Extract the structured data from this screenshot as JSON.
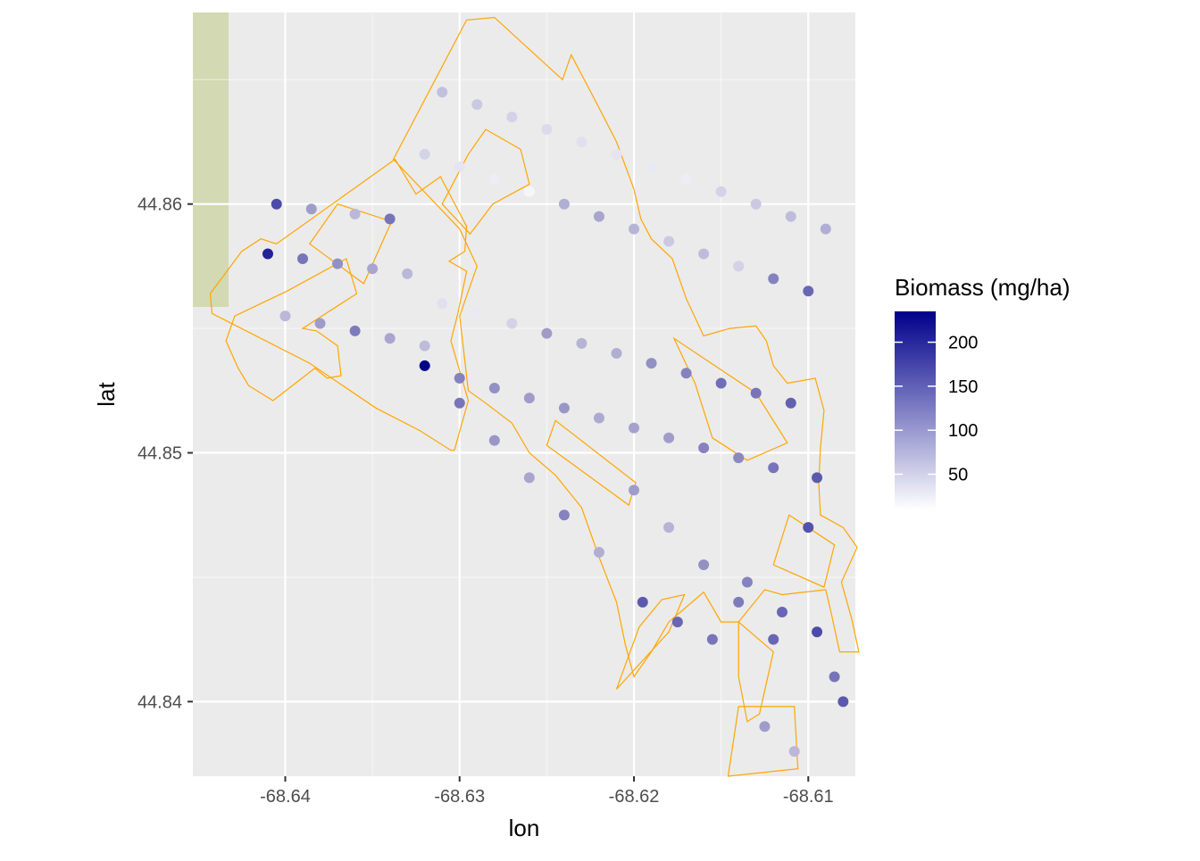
{
  "chart_data": {
    "type": "scatter",
    "xlabel": "lon",
    "ylabel": "lat",
    "xlim": [
      -68.6453,
      -68.6073
    ],
    "ylim": [
      44.837,
      44.8677
    ],
    "x_ticks": [
      -68.64,
      -68.63,
      -68.62,
      -68.61
    ],
    "x_tick_labels": [
      "-68.64",
      "-68.63",
      "-68.62",
      "-68.61"
    ],
    "y_ticks": [
      44.84,
      44.85,
      44.86
    ],
    "y_tick_labels": [
      "44.84",
      "44.85",
      "44.86"
    ],
    "grid": true,
    "legend": {
      "title": "Biomass (mg/ha)",
      "placement": "right",
      "range": [
        10,
        235
      ],
      "breaks": [
        50,
        100,
        150,
        200
      ],
      "labels": [
        "50",
        "100",
        "150",
        "200"
      ],
      "color_low": "#ffffff",
      "color_high": "#00008b"
    },
    "colors": {
      "panel_background": "#ebebeb",
      "grid_line": "#ffffff",
      "boundary": "#ffa500",
      "basemap_patch": "#d3d9b3"
    },
    "polygons": [
      [
        [
          -68.6405,
          44.8584
        ],
        [
          -68.6337,
          44.8618
        ],
        [
          -68.6325,
          44.8604
        ],
        [
          -68.6311,
          44.8611
        ],
        [
          -68.6296,
          44.8591
        ],
        [
          -68.6297,
          44.8581
        ],
        [
          -68.6306,
          44.8577
        ],
        [
          -68.6296,
          44.8573
        ],
        [
          -68.6301,
          44.8556
        ],
        [
          -68.6305,
          44.8545
        ],
        [
          -68.6295,
          44.8521
        ],
        [
          -68.6303,
          44.8501
        ],
        [
          -68.6305,
          44.8501
        ],
        [
          -68.6323,
          44.8509
        ],
        [
          -68.6348,
          44.8518
        ],
        [
          -68.6386,
          44.8536
        ],
        [
          -68.6442,
          44.8556
        ],
        [
          -68.6443,
          44.8564
        ],
        [
          -68.6425,
          44.8581
        ],
        [
          -68.6414,
          44.8586
        ]
      ],
      [
        [
          -68.6338,
          44.8618
        ],
        [
          -68.6296,
          44.8674
        ],
        [
          -68.628,
          44.8675
        ],
        [
          -68.6241,
          44.865
        ],
        [
          -68.6236,
          44.866
        ],
        [
          -68.6221,
          44.864
        ],
        [
          -68.621,
          44.8625
        ],
        [
          -68.62,
          44.8606
        ],
        [
          -68.6196,
          44.8594
        ],
        [
          -68.619,
          44.8586
        ],
        [
          -68.6178,
          44.8578
        ],
        [
          -68.617,
          44.8562
        ],
        [
          -68.616,
          44.8547
        ],
        [
          -68.6145,
          44.855
        ],
        [
          -68.613,
          44.8551
        ],
        [
          -68.6124,
          44.8545
        ],
        [
          -68.612,
          44.8535
        ],
        [
          -68.6112,
          44.8528
        ],
        [
          -68.6096,
          44.853
        ],
        [
          -68.6091,
          44.8517
        ],
        [
          -68.6093,
          44.8502
        ],
        [
          -68.6094,
          44.8488
        ],
        [
          -68.6093,
          44.8475
        ],
        [
          -68.608,
          44.847
        ],
        [
          -68.6072,
          44.8462
        ],
        [
          -68.6081,
          44.8448
        ],
        [
          -68.6075,
          44.8433
        ],
        [
          -68.6071,
          44.842
        ],
        [
          -68.6082,
          44.842
        ],
        [
          -68.6087,
          44.8436
        ],
        [
          -68.609,
          44.8445
        ],
        [
          -68.6115,
          44.8443
        ],
        [
          -68.6125,
          44.8445
        ],
        [
          -68.614,
          44.8432
        ],
        [
          -68.615,
          44.8432
        ],
        [
          -68.616,
          44.8444
        ],
        [
          -68.618,
          44.8432
        ],
        [
          -68.619,
          44.842
        ],
        [
          -68.62,
          44.841
        ],
        [
          -68.6205,
          44.8423
        ],
        [
          -68.621,
          44.844
        ],
        [
          -68.622,
          44.8458
        ],
        [
          -68.623,
          44.8478
        ],
        [
          -68.6245,
          44.8491
        ],
        [
          -68.626,
          44.85
        ],
        [
          -68.627,
          44.8512
        ],
        [
          -68.6285,
          44.852
        ],
        [
          -68.6295,
          44.8525
        ],
        [
          -68.63,
          44.8555
        ],
        [
          -68.629,
          44.8575
        ],
        [
          -68.63,
          44.859
        ]
      ],
      [
        [
          -68.6399,
          44.8565
        ],
        [
          -68.6365,
          44.8578
        ],
        [
          -68.6359,
          44.8564
        ],
        [
          -68.639,
          44.855
        ],
        [
          -68.6382,
          44.8549
        ],
        [
          -68.637,
          44.8543
        ],
        [
          -68.6368,
          44.8531
        ],
        [
          -68.6376,
          44.853
        ],
        [
          -68.6383,
          44.8534
        ],
        [
          -68.6407,
          44.8521
        ],
        [
          -68.6421,
          44.8527
        ],
        [
          -68.6427,
          44.8534
        ],
        [
          -68.6434,
          44.8545
        ],
        [
          -68.6429,
          44.8555
        ]
      ],
      [
        [
          -68.637,
          44.86
        ],
        [
          -68.6339,
          44.8593
        ],
        [
          -68.6355,
          44.8568
        ],
        [
          -68.6386,
          44.8584
        ]
      ],
      [
        [
          -68.6245,
          44.8513
        ],
        [
          -68.6199,
          44.8488
        ],
        [
          -68.6203,
          44.8479
        ],
        [
          -68.625,
          44.8503
        ]
      ],
      [
        [
          -68.6177,
          44.8546
        ],
        [
          -68.613,
          44.8524
        ],
        [
          -68.6112,
          44.8504
        ],
        [
          -68.6135,
          44.8497
        ],
        [
          -68.6155,
          44.8506
        ],
        [
          -68.6165,
          44.8528
        ]
      ],
      [
        [
          -68.6111,
          44.8475
        ],
        [
          -68.6085,
          44.8463
        ],
        [
          -68.6091,
          44.8446
        ],
        [
          -68.612,
          44.8455
        ]
      ],
      [
        [
          -68.621,
          44.8405
        ],
        [
          -68.618,
          44.8428
        ],
        [
          -68.6171,
          44.8443
        ],
        [
          -68.6184,
          44.8441
        ],
        [
          -68.6197,
          44.843
        ]
      ],
      [
        [
          -68.614,
          44.8398
        ],
        [
          -68.6108,
          44.8398
        ],
        [
          -68.6106,
          44.8373
        ],
        [
          -68.6146,
          44.837
        ]
      ],
      [
        [
          -68.631,
          44.86
        ],
        [
          -68.6294,
          44.8588
        ],
        [
          -68.6281,
          44.86
        ],
        [
          -68.626,
          44.8608
        ],
        [
          -68.6265,
          44.8622
        ],
        [
          -68.6285,
          44.863
        ],
        [
          -68.6295,
          44.862
        ]
      ],
      [
        [
          -68.614,
          44.8432
        ],
        [
          -68.612,
          44.842
        ],
        [
          -68.6128,
          44.8395
        ],
        [
          -68.6135,
          44.8392
        ],
        [
          -68.614,
          44.841
        ]
      ]
    ],
    "series": [
      {
        "x": [
          -68.6405,
          -68.6385,
          -68.636,
          -68.634,
          -68.632,
          -68.63,
          -68.628,
          -68.626,
          -68.624,
          -68.622,
          -68.62,
          -68.618,
          -68.616,
          -68.614,
          -68.612,
          -68.61,
          -68.641,
          -68.639,
          -68.637,
          -68.635,
          -68.633,
          -68.631,
          -68.629,
          -68.627,
          -68.625,
          -68.623,
          -68.621,
          -68.619,
          -68.617,
          -68.615,
          -68.613,
          -68.611,
          -68.64,
          -68.638,
          -68.636,
          -68.634,
          -68.632,
          -68.63,
          -68.628,
          -68.626,
          -68.624,
          -68.622,
          -68.62,
          -68.618,
          -68.616,
          -68.614,
          -68.612,
          -68.6095,
          -68.632,
          -68.63,
          -68.628,
          -68.626,
          -68.624,
          -68.622,
          -68.62,
          -68.618,
          -68.616,
          -68.614,
          -68.612,
          -68.61,
          -68.631,
          -68.629,
          -68.627,
          -68.625,
          -68.623,
          -68.621,
          -68.619,
          -68.617,
          -68.615,
          -68.613,
          -68.611,
          -68.609,
          -68.6195,
          -68.6175,
          -68.6155,
          -68.6135,
          -68.6115,
          -68.6095,
          -68.6085,
          -68.608,
          -68.6125,
          -68.6108
        ],
        "y": [
          44.86,
          44.8598,
          44.8596,
          44.8594,
          44.862,
          44.8615,
          44.861,
          44.8605,
          44.86,
          44.8595,
          44.859,
          44.8585,
          44.858,
          44.8575,
          44.857,
          44.8565,
          44.858,
          44.8578,
          44.8576,
          44.8574,
          44.8572,
          44.856,
          44.8556,
          44.8552,
          44.8548,
          44.8544,
          44.854,
          44.8536,
          44.8532,
          44.8528,
          44.8524,
          44.852,
          44.8555,
          44.8552,
          44.8549,
          44.8546,
          44.8543,
          44.853,
          44.8526,
          44.8522,
          44.8518,
          44.8514,
          44.851,
          44.8506,
          44.8502,
          44.8498,
          44.8494,
          44.849,
          44.8535,
          44.852,
          44.8505,
          44.849,
          44.8475,
          44.846,
          44.8485,
          44.847,
          44.8455,
          44.844,
          44.8425,
          44.847,
          44.8645,
          44.864,
          44.8635,
          44.863,
          44.8625,
          44.862,
          44.8615,
          44.861,
          44.8605,
          44.86,
          44.8595,
          44.859,
          44.844,
          44.8432,
          44.8425,
          44.8448,
          44.8436,
          44.8428,
          44.841,
          44.84,
          44.839,
          44.838
        ],
        "values": [
          180,
          120,
          90,
          150,
          60,
          40,
          30,
          20,
          100,
          110,
          95,
          70,
          85,
          60,
          140,
          160,
          210,
          150,
          130,
          110,
          90,
          45,
          35,
          60,
          120,
          95,
          100,
          130,
          140,
          155,
          150,
          165,
          90,
          120,
          145,
          110,
          85,
          140,
          130,
          120,
          125,
          105,
          115,
          120,
          140,
          135,
          150,
          170,
          235,
          150,
          125,
          110,
          140,
          100,
          120,
          95,
          130,
          145,
          160,
          175,
          80,
          70,
          60,
          50,
          45,
          40,
          35,
          30,
          60,
          70,
          85,
          100,
          170,
          160,
          150,
          140,
          160,
          180,
          150,
          170,
          120,
          90
        ]
      }
    ]
  }
}
